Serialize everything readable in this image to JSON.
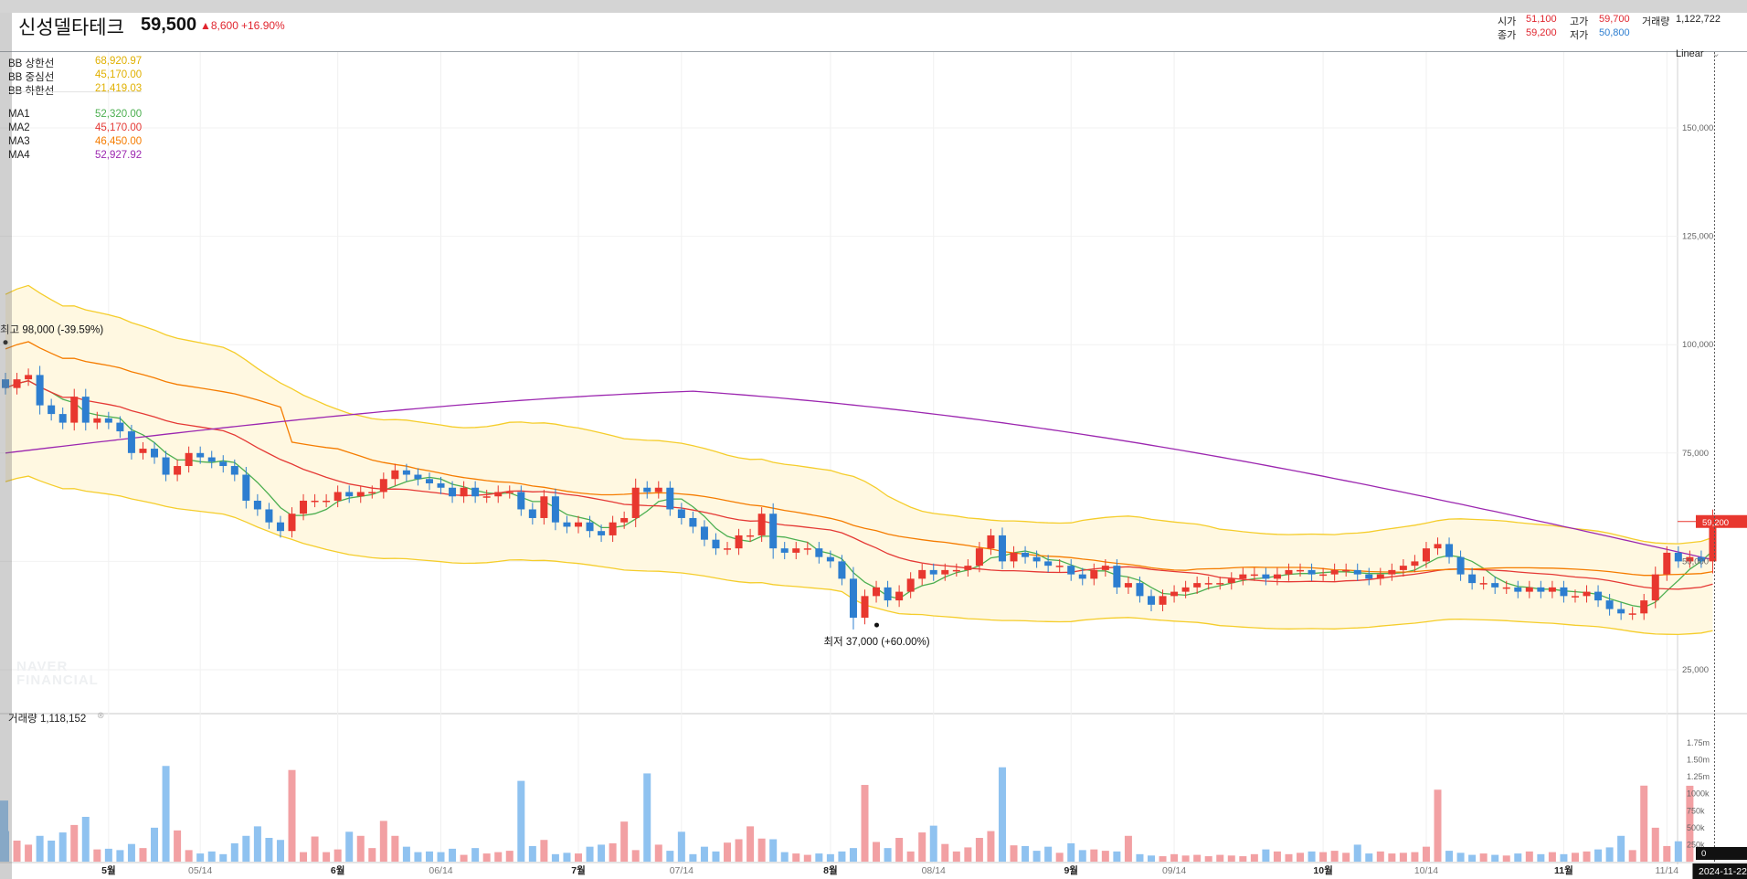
{
  "header": {
    "stock_name": "신성델타테크",
    "price": "59,500",
    "change": "▲8,600",
    "change_pct": "+16.90%",
    "ohlc": {
      "open_label": "시가",
      "open": "51,100",
      "high_label": "고가",
      "high": "59,700",
      "volume_label": "거래량",
      "volume": "1,122,722",
      "close_label": "종가",
      "close": "59,200",
      "low_label": "저가",
      "low": "50,800"
    }
  },
  "legend": {
    "bb_upper": {
      "label": "BB 상한선",
      "value": "68,920.97",
      "color": "#f0c419"
    },
    "bb_mid": {
      "label": "BB 중심선",
      "value": "45,170.00",
      "color": "#f0c419"
    },
    "bb_lower": {
      "label": "BB 하한선",
      "value": "21,419.03",
      "color": "#f0c419"
    },
    "ma1": {
      "label": "MA1",
      "value": "52,320.00",
      "color": "#4caf50"
    },
    "ma2": {
      "label": "MA2",
      "value": "45,170.00",
      "color": "#e53935"
    },
    "ma3": {
      "label": "MA3",
      "value": "46,450.00",
      "color": "#f57c00"
    },
    "ma4": {
      "label": "MA4",
      "value": "52,927.92",
      "color": "#9c27b0"
    }
  },
  "scale_label": "Linear",
  "volume_panel": {
    "label": "거래량",
    "value": "1,118,152"
  },
  "watermark": [
    "NAVER",
    "FINANCIAL"
  ],
  "colors": {
    "up": "#e8372f",
    "down": "#2d7ed0",
    "vol_up": "#f2a0a3",
    "vol_down": "#8fc2f0",
    "band_fill": "#fff8e1"
  },
  "chart_data": {
    "type": "candlestick",
    "price_axis": {
      "ticks": [
        "150,000",
        "125,000",
        "100,000",
        "75,000",
        "50,000",
        "25,000"
      ],
      "tick_values": [
        150000,
        125000,
        100000,
        75000,
        50000,
        25000
      ],
      "range": [
        0,
        163000
      ]
    },
    "volume_axis": {
      "ticks": [
        "1.75m",
        "1.50m",
        "1.25m",
        "1000k",
        "750k",
        "500k",
        "250k",
        "0"
      ],
      "tick_values": [
        1750000,
        1500000,
        1250000,
        1000000,
        750000,
        500000,
        250000,
        0
      ],
      "range": [
        0,
        1850000
      ]
    },
    "x_labels": [
      {
        "label": "5월",
        "bold": true
      },
      {
        "label": "05/14",
        "bold": false
      },
      {
        "label": "6월",
        "bold": true
      },
      {
        "label": "06/14",
        "bold": false
      },
      {
        "label": "7월",
        "bold": true
      },
      {
        "label": "07/14",
        "bold": false
      },
      {
        "label": "8월",
        "bold": true
      },
      {
        "label": "08/14",
        "bold": false
      },
      {
        "label": "9월",
        "bold": true
      },
      {
        "label": "09/14",
        "bold": false
      },
      {
        "label": "10월",
        "bold": true
      },
      {
        "label": "10/14",
        "bold": false
      },
      {
        "label": "11월",
        "bold": true
      },
      {
        "label": "11/14",
        "bold": false
      }
    ],
    "x_label_index": [
      9,
      17,
      29,
      38,
      50,
      59,
      72,
      81,
      93,
      102,
      115,
      124,
      136,
      145
    ],
    "current_date": "2024-11-22",
    "last_price_tag": "59,200",
    "last_price_value": 59200,
    "annotations": {
      "high": {
        "text": "최고 98,000 (-39.59%)",
        "value": 98000,
        "index": 0
      },
      "low": {
        "text": "최저 37,000 (+60.00%)",
        "value": 37000,
        "index": 75
      }
    },
    "volume_last_tag": "0",
    "closes": [
      90000,
      92000,
      93000,
      86000,
      84000,
      82000,
      88000,
      82000,
      83000,
      82000,
      80000,
      75000,
      76000,
      74000,
      70000,
      72000,
      75000,
      74000,
      73000,
      72000,
      70000,
      64000,
      62000,
      59000,
      57000,
      61000,
      64000,
      64000,
      64000,
      66000,
      65000,
      66000,
      66000,
      69000,
      71000,
      70000,
      69000,
      68000,
      67000,
      65000,
      67000,
      65000,
      65000,
      66000,
      66000,
      62000,
      60000,
      65000,
      59000,
      58000,
      59000,
      57000,
      56000,
      59000,
      60000,
      67000,
      66000,
      67000,
      62000,
      60000,
      58000,
      55000,
      53000,
      53000,
      56000,
      56000,
      61000,
      53000,
      52000,
      53000,
      53000,
      51000,
      50000,
      46000,
      37000,
      42000,
      44000,
      41000,
      43000,
      46000,
      48000,
      47000,
      48000,
      48000,
      49000,
      53000,
      56000,
      50000,
      52000,
      51000,
      50000,
      49000,
      49000,
      47000,
      46000,
      48000,
      49000,
      44000,
      45000,
      42000,
      40000,
      42000,
      43000,
      44000,
      45000,
      45000,
      45000,
      46000,
      47000,
      47000,
      46000,
      47000,
      48000,
      48000,
      47000,
      47000,
      48000,
      48000,
      47000,
      46000,
      47000,
      48000,
      49000,
      50000,
      53000,
      54000,
      51000,
      47000,
      45000,
      45000,
      44000,
      44000,
      43000,
      44000,
      43000,
      44000,
      42000,
      42000,
      43000,
      41000,
      39000,
      38000,
      38000,
      41000,
      47000,
      52000,
      50000,
      51000,
      50000,
      59200
    ],
    "volumes": [
      450000,
      310000,
      250000,
      380000,
      310000,
      430000,
      540000,
      660000,
      180000,
      190000,
      170000,
      260000,
      200000,
      500000,
      1410000,
      460000,
      170000,
      120000,
      150000,
      110000,
      270000,
      380000,
      520000,
      350000,
      320000,
      1350000,
      140000,
      370000,
      140000,
      180000,
      440000,
      380000,
      200000,
      600000,
      380000,
      220000,
      140000,
      150000,
      140000,
      190000,
      100000,
      200000,
      120000,
      140000,
      160000,
      1190000,
      230000,
      320000,
      110000,
      130000,
      120000,
      220000,
      250000,
      270000,
      590000,
      170000,
      1300000,
      250000,
      160000,
      440000,
      110000,
      220000,
      150000,
      280000,
      330000,
      520000,
      340000,
      330000,
      140000,
      120000,
      100000,
      120000,
      110000,
      150000,
      200000,
      1130000,
      290000,
      200000,
      350000,
      150000,
      430000,
      530000,
      260000,
      150000,
      210000,
      350000,
      450000,
      1390000,
      240000,
      230000,
      160000,
      220000,
      130000,
      270000,
      170000,
      180000,
      160000,
      150000,
      380000,
      110000,
      90000,
      80000,
      110000,
      90000,
      100000,
      80000,
      100000,
      90000,
      80000,
      110000,
      180000,
      150000,
      110000,
      130000,
      150000,
      140000,
      160000,
      130000,
      250000,
      120000,
      150000,
      120000,
      130000,
      140000,
      220000,
      1060000,
      160000,
      130000,
      100000,
      120000,
      100000,
      90000,
      120000,
      150000,
      110000,
      140000,
      110000,
      130000,
      150000,
      180000,
      210000,
      380000,
      170000,
      1120000,
      500000,
      230000,
      300000,
      1118152
    ]
  }
}
